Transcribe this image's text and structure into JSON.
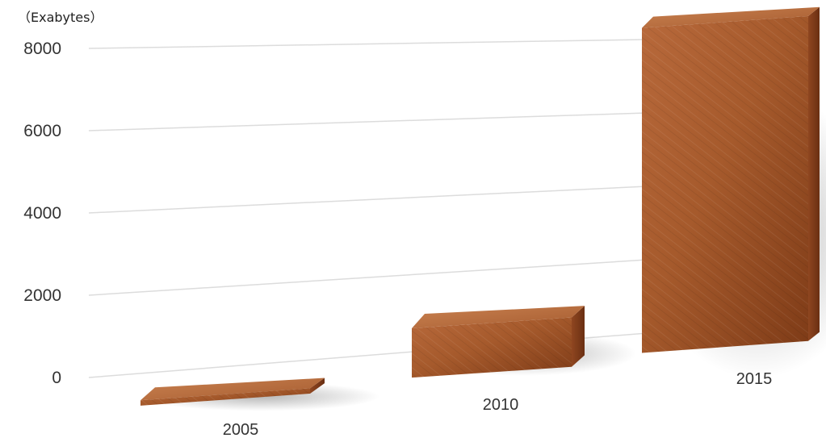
{
  "chart_data": {
    "type": "bar",
    "unit_label": "（Exabytes）",
    "categories": [
      "2005",
      "2010",
      "2015"
    ],
    "values": [
      130,
      1200,
      7900
    ],
    "ylim": [
      0,
      8000
    ],
    "yticks": [
      "0",
      "2000",
      "4000",
      "6000",
      "8000"
    ],
    "grid": true,
    "style": "3d-wood-blocks"
  },
  "colors": {
    "wood_light": "#b86a3c",
    "wood_mid": "#9a4f25",
    "wood_dark": "#6e3213",
    "gridline": "#dcdcdc"
  }
}
